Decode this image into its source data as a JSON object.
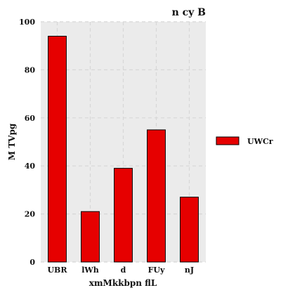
{
  "chart_data": {
    "type": "bar",
    "title": "n cy B",
    "xlabel": "xmMkkbpn flL",
    "ylabel": "M TVpg",
    "categories": [
      "UBR",
      "lWh",
      "d",
      "FUy",
      "nJ"
    ],
    "series": [
      {
        "name": "UWCr",
        "values": [
          94,
          21,
          39,
          55,
          27
        ],
        "color": "#e60000"
      }
    ],
    "ylim": [
      0,
      100
    ],
    "yticks": [
      0,
      20,
      40,
      60,
      80,
      100
    ],
    "grid": true,
    "legend": "right",
    "background_color": "#ebebeb"
  }
}
